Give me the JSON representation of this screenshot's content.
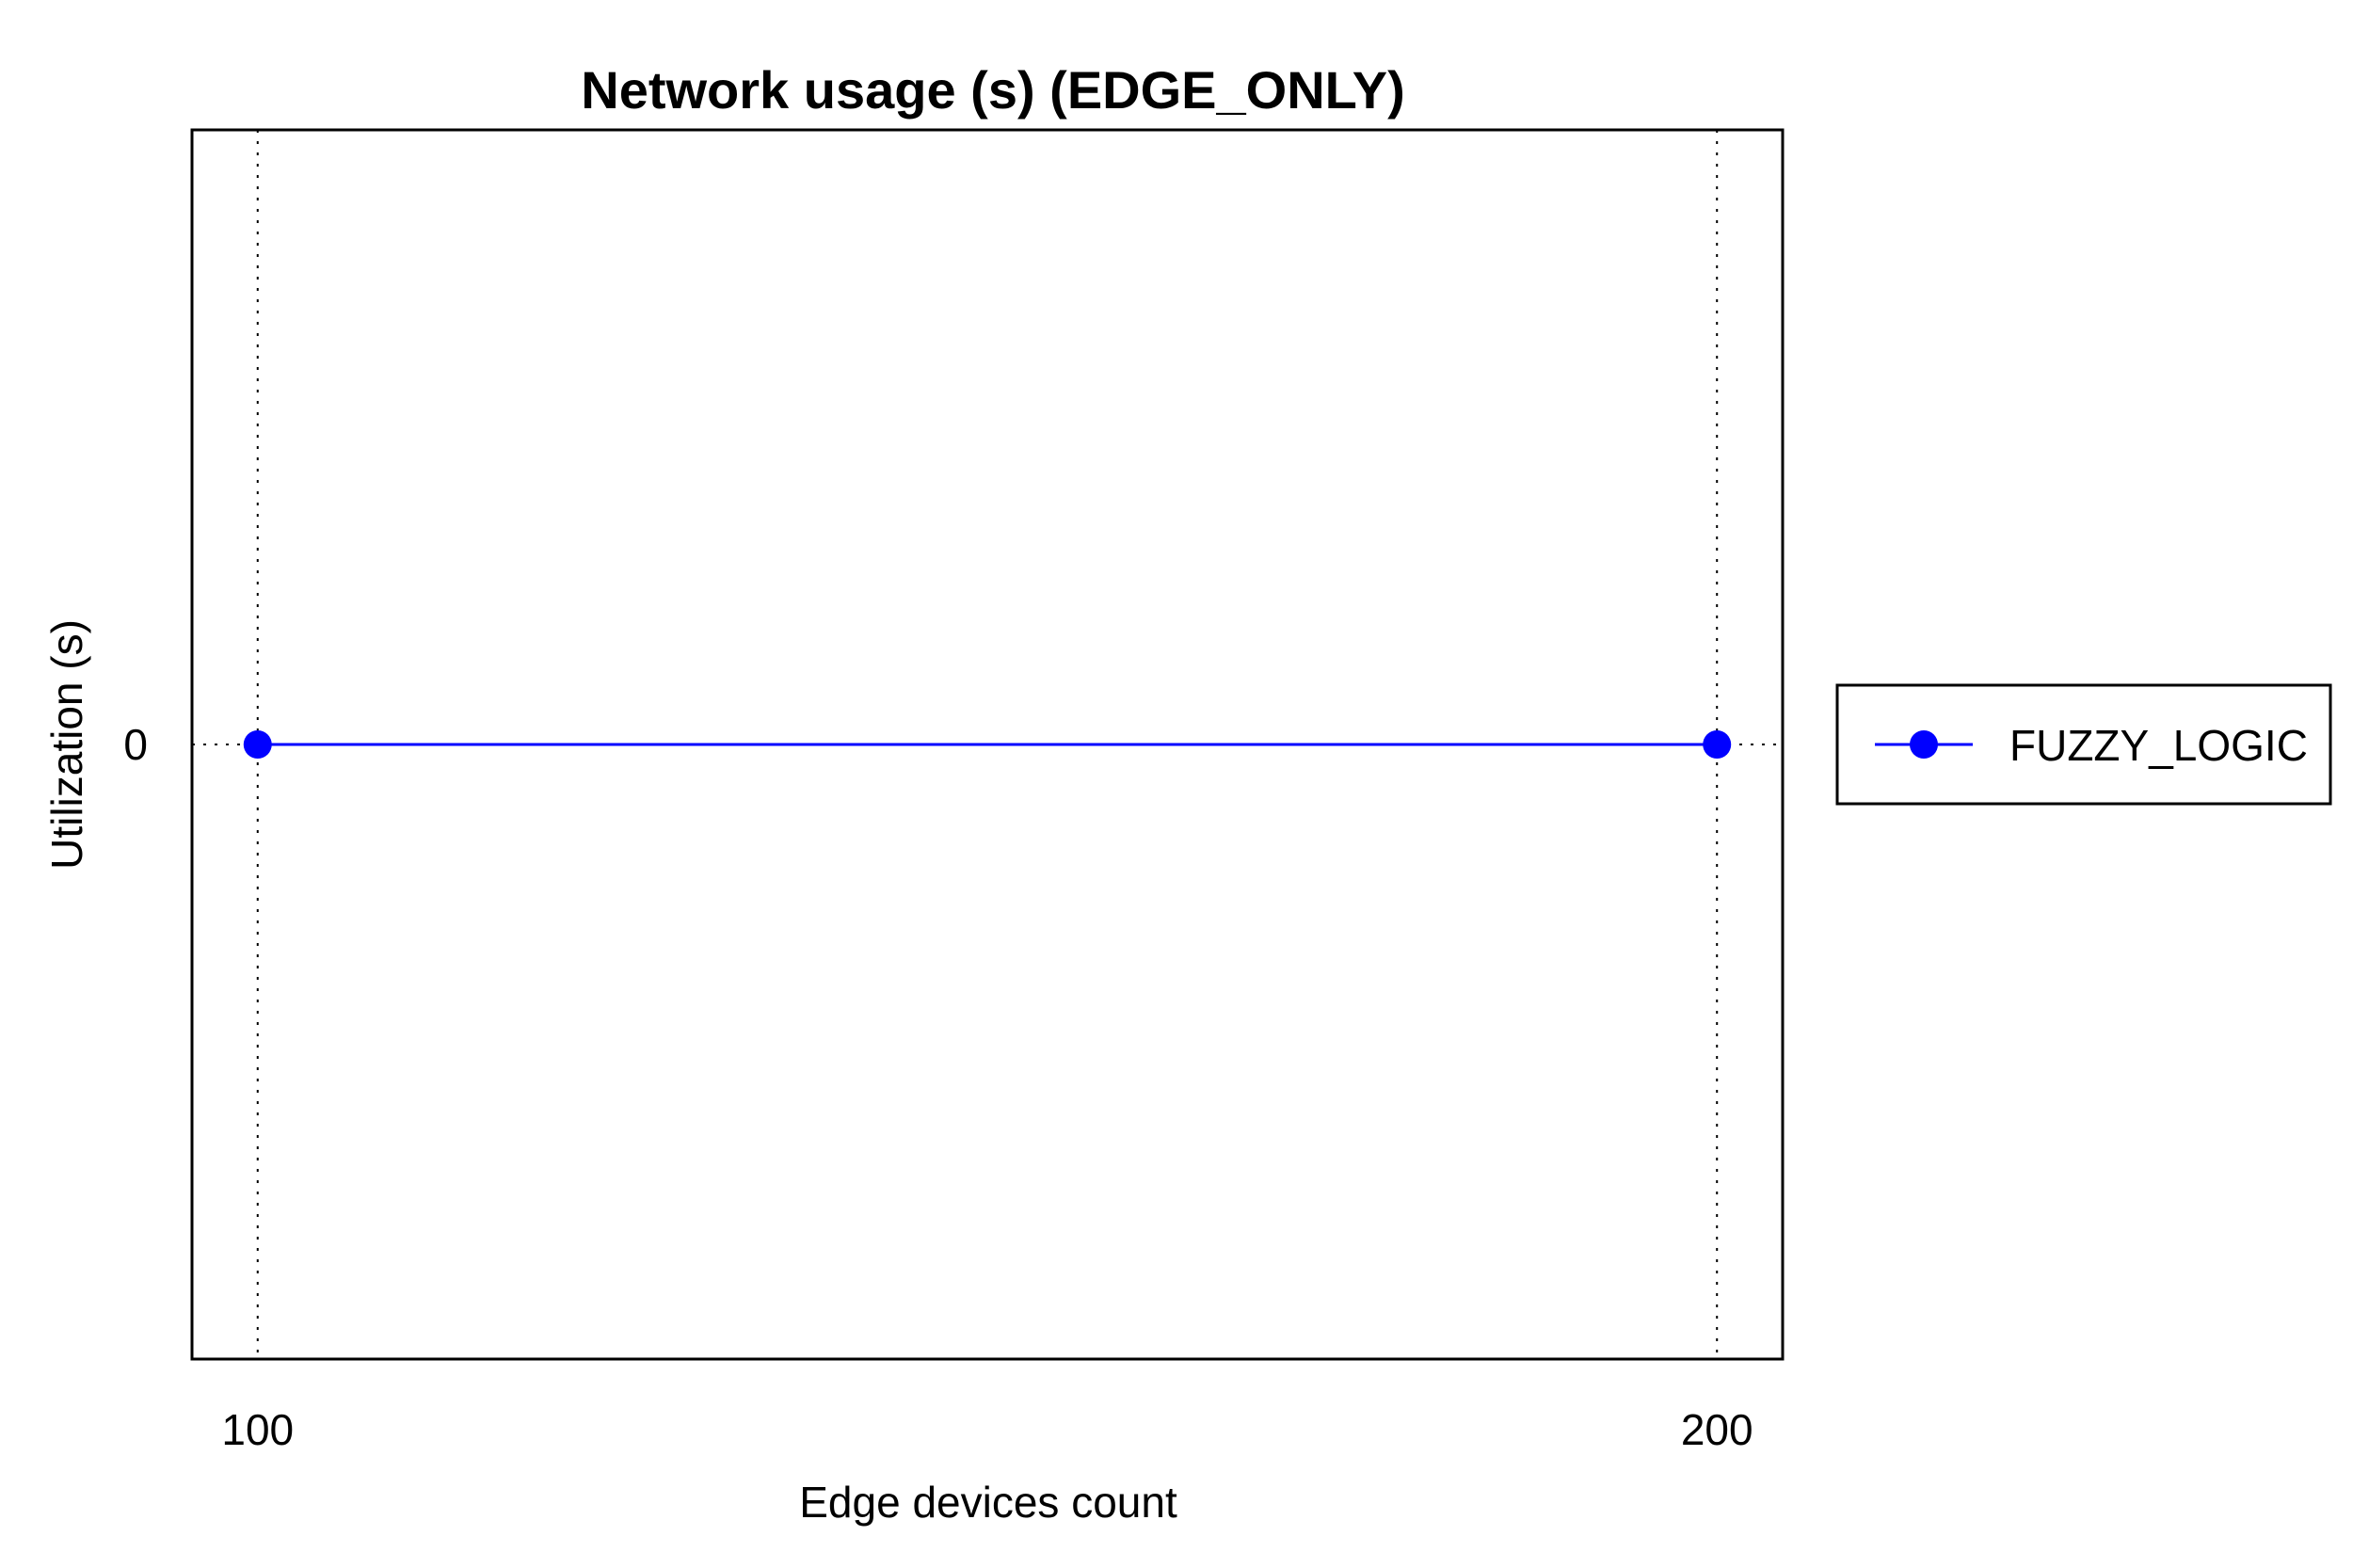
{
  "chart_data": {
    "type": "line",
    "title": "Network usage (s) (EDGE_ONLY)",
    "xlabel": "Edge devices count",
    "ylabel": "Utilization (s)",
    "x": [
      100,
      200
    ],
    "x_ticks": [
      "100",
      "200"
    ],
    "y_ticks": [
      "0"
    ],
    "xlim": [
      95.5,
      204.5
    ],
    "ylim": [
      -1,
      1
    ],
    "grid": "x-only dotted",
    "legend_position": "outside-right",
    "series": [
      {
        "name": "FUZZY_LOGIC",
        "values": [
          0,
          0
        ],
        "color": "#0000ff",
        "marker": "circle"
      }
    ]
  }
}
